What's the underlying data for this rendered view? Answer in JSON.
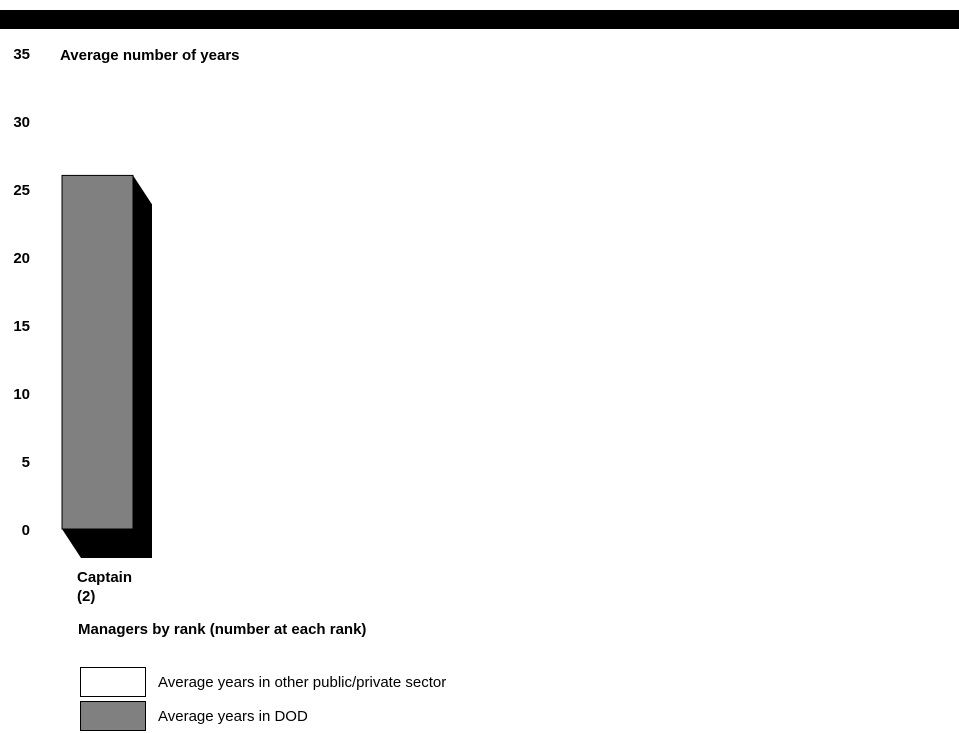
{
  "colors": {
    "header_bar": "#000000",
    "other_sector": "#ffffff",
    "dod": "#808080",
    "shadow": "#000000"
  },
  "legend": [
    {
      "label": "Average years in other public/private sector",
      "color": "#ffffff"
    },
    {
      "label": "Average years in DOD",
      "color": "#808080"
    }
  ],
  "chart_data": {
    "type": "bar",
    "stacked": true,
    "bar_style": "3d",
    "categories": [
      {
        "line1": "Captain",
        "line2": "(2)"
      }
    ],
    "series": [
      {
        "name": "Average years in other public/private sector",
        "values": [
          0
        ]
      },
      {
        "name": "Average years in DOD",
        "values": [
          26
        ]
      }
    ],
    "title": "",
    "ylabel": "Average number of years",
    "xlabel": "Managers by rank (number at each rank)",
    "ylim": [
      0,
      35
    ],
    "yticks": [
      "0",
      "5",
      "10",
      "15",
      "20",
      "25",
      "30",
      "35"
    ],
    "grid": false,
    "legend_position": "bottom-left"
  }
}
